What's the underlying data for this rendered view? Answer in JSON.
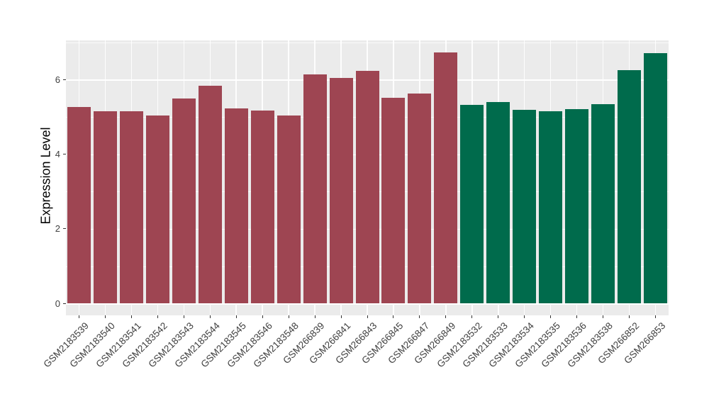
{
  "chart_data": {
    "type": "bar",
    "title": "",
    "xlabel": "",
    "ylabel": "Expression Level",
    "ylim": [
      0,
      7.05
    ],
    "yticks": [
      0,
      2,
      4,
      6
    ],
    "grid": "on",
    "legend": "none",
    "panel_background": "#EBEBEB",
    "gridline_color": "#FFFFFF",
    "tick_color": "#333333",
    "label_color": "#404040",
    "group_colors": [
      "#9E4552",
      "#006B4C"
    ],
    "categories": [
      "GSM2183539",
      "GSM2183540",
      "GSM2183541",
      "GSM2183542",
      "GSM2183543",
      "GSM2183544",
      "GSM2183545",
      "GSM2183546",
      "GSM2183548",
      "GSM266839",
      "GSM266841",
      "GSM266843",
      "GSM266845",
      "GSM266847",
      "GSM266849",
      "GSM2183532",
      "GSM2183533",
      "GSM2183534",
      "GSM2183535",
      "GSM2183536",
      "GSM2183538",
      "GSM266852",
      "GSM266853"
    ],
    "values": [
      5.27,
      5.15,
      5.16,
      5.03,
      5.49,
      5.84,
      5.22,
      5.17,
      5.04,
      6.13,
      6.04,
      6.23,
      5.52,
      5.63,
      6.72,
      5.32,
      5.4,
      5.18,
      5.15,
      5.21,
      5.34,
      6.26,
      6.7
    ],
    "groups": [
      0,
      0,
      0,
      0,
      0,
      0,
      0,
      0,
      0,
      0,
      0,
      0,
      0,
      0,
      0,
      1,
      1,
      1,
      1,
      1,
      1,
      1,
      1
    ]
  }
}
